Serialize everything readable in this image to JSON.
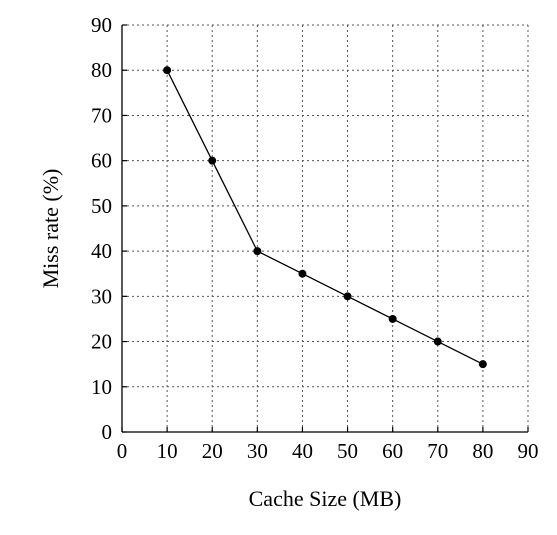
{
  "chart_data": {
    "type": "line",
    "title": "",
    "xlabel": "Cache Size (MB)",
    "ylabel": "Miss rate (%)",
    "xlim": [
      0,
      90
    ],
    "ylim": [
      0,
      90
    ],
    "x_ticks": [
      "0",
      "10",
      "20",
      "30",
      "40",
      "50",
      "60",
      "70",
      "80",
      "90"
    ],
    "y_ticks": [
      "0",
      "10",
      "20",
      "30",
      "40",
      "50",
      "60",
      "70",
      "80",
      "90"
    ],
    "grid": true,
    "grid_style": "dotted",
    "legend": false,
    "series": [
      {
        "x": [
          10,
          20,
          30,
          40,
          50,
          60,
          70,
          80
        ],
        "y": [
          80,
          60,
          40,
          35,
          30,
          25,
          20,
          15
        ],
        "color": "#000000",
        "marker": "filled-circle"
      }
    ]
  }
}
